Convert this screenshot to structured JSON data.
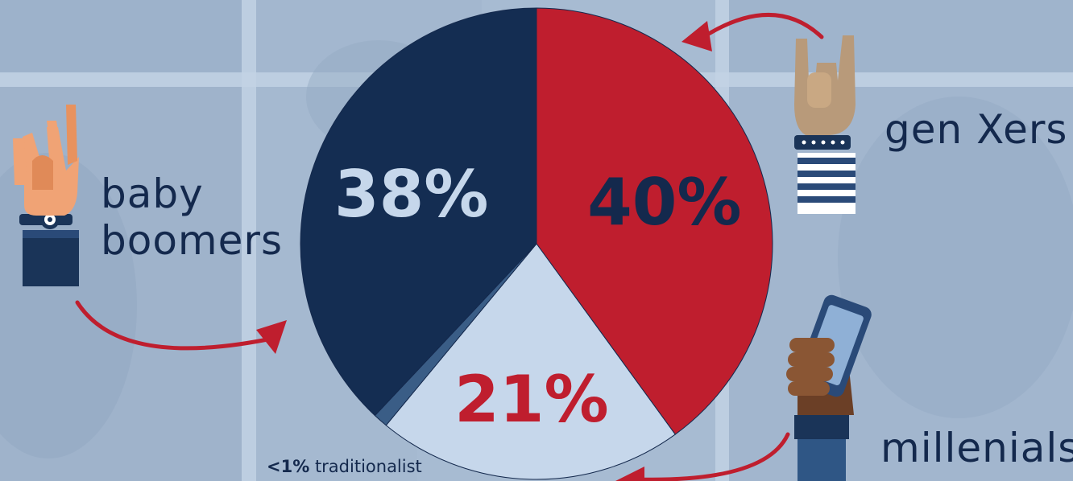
{
  "chart_data": {
    "type": "pie",
    "slices": [
      {
        "name": "gen Xers",
        "value": 40,
        "label": "40%",
        "color": "#bf1e2e",
        "label_color": "#14294d"
      },
      {
        "name": "millenials",
        "value": 21,
        "label": "21%",
        "color": "#c6d7eb",
        "label_color": "#bf1e2e"
      },
      {
        "name": "traditionalist",
        "value": 1,
        "label": "<1%",
        "color": "#3a5d86",
        "label_color": "#14294d"
      },
      {
        "name": "baby boomers",
        "value": 38,
        "label": "38%",
        "color": "#142d52",
        "label_color": "#c6d7eb"
      }
    ],
    "legend_labels": {
      "baby_boomers": [
        "baby",
        "boomers"
      ],
      "gen_xers": "gen Xers",
      "millenials": "millenials"
    },
    "footnote": {
      "value": "<1%",
      "text": "traditionalist"
    }
  },
  "colors": {
    "background": "#a9bdd4",
    "arrow": "#bf1e2e",
    "label_text": "#14294d"
  },
  "icons": [
    "peace-sign-hand-icon",
    "rock-on-hand-icon",
    "phone-hand-icon"
  ]
}
